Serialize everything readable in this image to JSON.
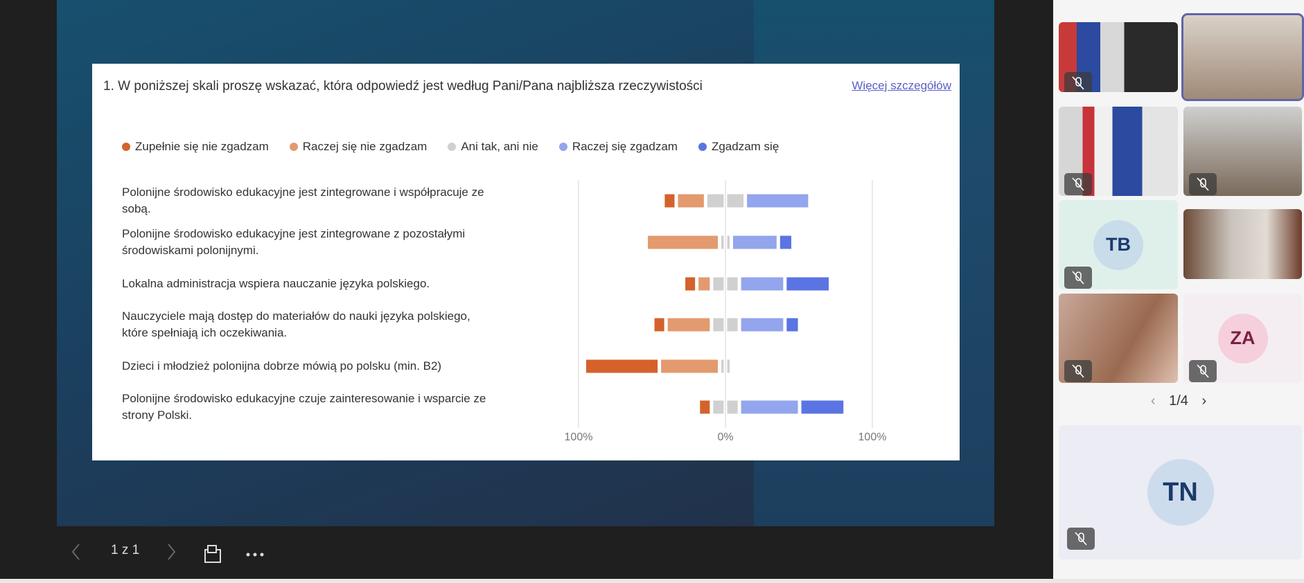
{
  "chart_data": {
    "type": "diverging_stacked_bar",
    "title": "1. W poniższej skali proszę wskazać, która odpowiedź jest według Pani/Pana najbliższa rzeczywistości",
    "categories": [
      "Polonijne środowisko edukacyjne jest zintegrowane i współpracuje ze sobą.",
      "Polonijne środowisko edukacyjne jest zintegrowane z pozostałymi środowiskami polonijnymi.",
      "Lokalna administracja wspiera nauczanie języka polskiego.",
      "Nauczyciele mają dostęp do materiałów do nauki języka polskiego, które spełniają ich oczekiwania.",
      "Dzieci i młodzież polonijna dobrze mówią po polsku (min. B2)",
      "Polonijne środowisko edukacyjne czuje zainteresowanie i wsparcie ze strony Polski."
    ],
    "series": [
      {
        "name": "Zupełnie się nie zgadzam",
        "color": "#d4622a",
        "values": [
          9,
          0,
          9,
          9,
          51,
          9
        ]
      },
      {
        "name": "Raczej się nie zgadzam",
        "color": "#e39a6f",
        "values": [
          20,
          50,
          10,
          31,
          41,
          0
        ]
      },
      {
        "name": "Ani tak, ani nie",
        "color": "#d0d0d0",
        "values": [
          27,
          8,
          19,
          19,
          8,
          19
        ]
      },
      {
        "name": "Raczej się zgadzam",
        "color": "#93a5ec",
        "values": [
          44,
          32,
          31,
          31,
          0,
          41
        ]
      },
      {
        "name": "Zgadzam się",
        "color": "#5b74e3",
        "values": [
          0,
          10,
          31,
          10,
          0,
          31
        ]
      }
    ],
    "neutral_series": 2,
    "xlim": [
      -100,
      100
    ],
    "xticks": [
      {
        "value": -100,
        "label": "100%"
      },
      {
        "value": 0,
        "label": "0%"
      },
      {
        "value": 100,
        "label": "100%"
      }
    ],
    "grid": true
  },
  "details_link": "Więcej szczegółów",
  "toolbar": {
    "page_indicator": "1 z 1"
  },
  "participants": {
    "initials": [
      "TB",
      "ZA",
      "TN"
    ],
    "pager": "1/4"
  }
}
